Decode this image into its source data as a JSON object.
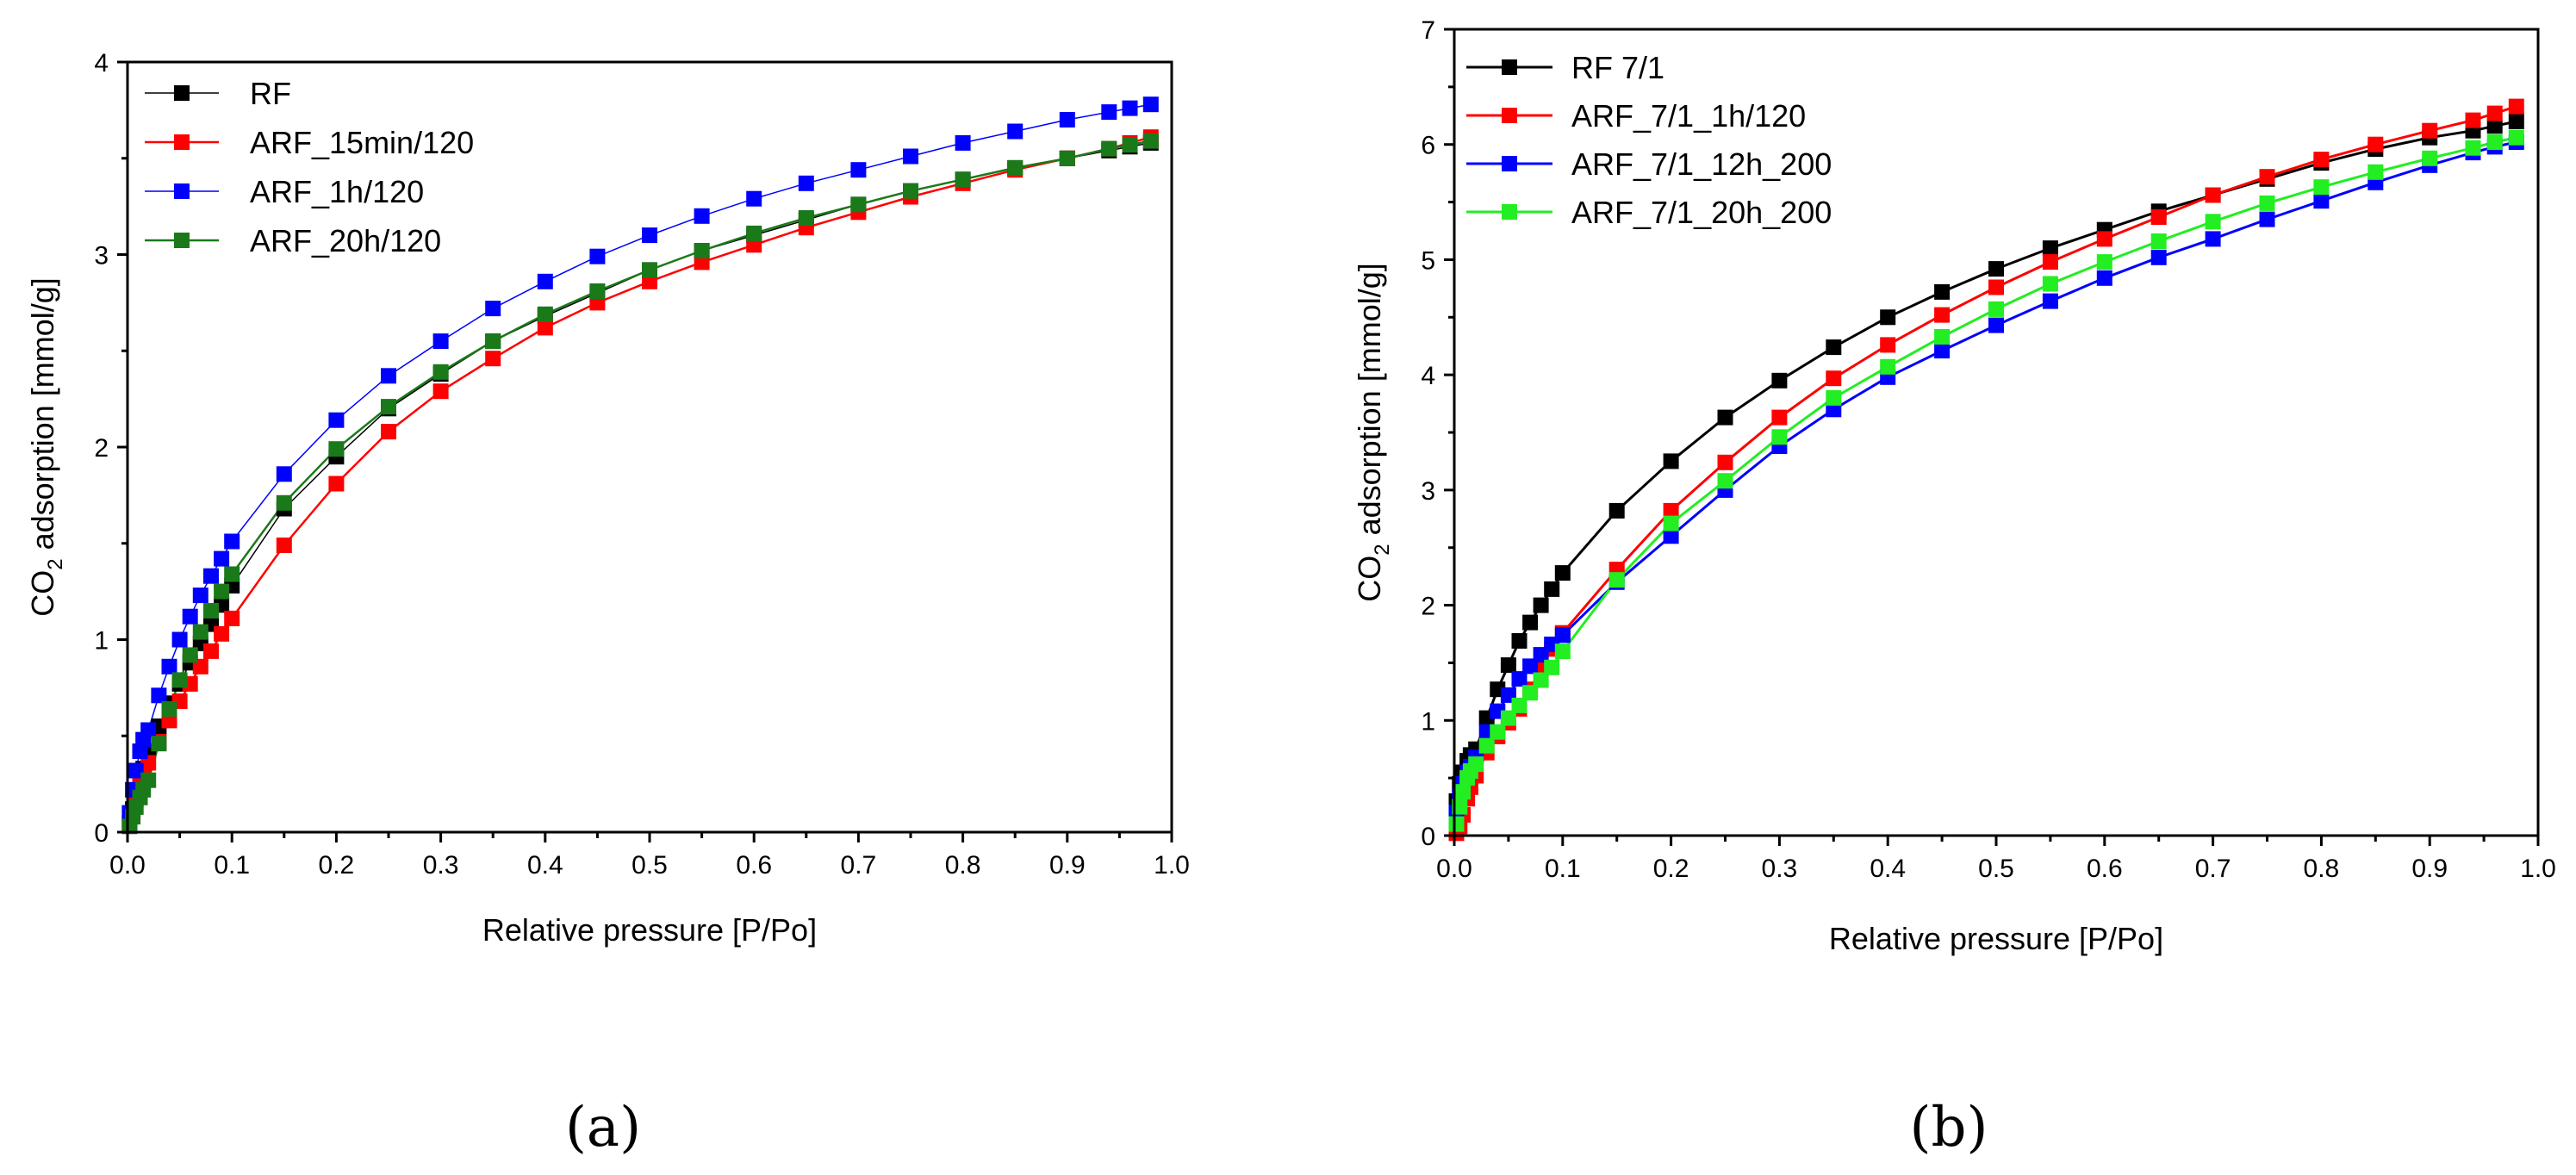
{
  "chart_data": [
    {
      "type": "line",
      "panel_label": "(a)",
      "xlabel": "Relative pressure [P/Po]",
      "ylabel_prefix": "CO",
      "ylabel_sub": "2",
      "ylabel_suffix": " adsorption [mmol/g]",
      "xlim": [
        0,
        1.0
      ],
      "ylim": [
        0,
        4
      ],
      "xticks": [
        "0.0",
        "0.1",
        "0.2",
        "0.3",
        "0.4",
        "0.5",
        "0.6",
        "0.7",
        "0.8",
        "0.9",
        "1.0"
      ],
      "yticks": [
        "0",
        "1",
        "2",
        "3",
        "4"
      ],
      "legend_position": "top-left",
      "series": [
        {
          "name": "RF",
          "color": "#000000",
          "line_width": 1.5,
          "x": [
            0.002,
            0.005,
            0.008,
            0.012,
            0.015,
            0.02,
            0.03,
            0.04,
            0.05,
            0.06,
            0.07,
            0.08,
            0.09,
            0.1,
            0.15,
            0.2,
            0.25,
            0.3,
            0.35,
            0.4,
            0.45,
            0.5,
            0.55,
            0.6,
            0.65,
            0.7,
            0.75,
            0.8,
            0.85,
            0.9,
            0.94,
            0.96,
            0.98
          ],
          "y": [
            0.05,
            0.12,
            0.2,
            0.28,
            0.33,
            0.42,
            0.55,
            0.67,
            0.77,
            0.88,
            0.98,
            1.08,
            1.18,
            1.28,
            1.68,
            1.95,
            2.2,
            2.38,
            2.55,
            2.68,
            2.8,
            2.92,
            3.02,
            3.1,
            3.18,
            3.26,
            3.33,
            3.39,
            3.45,
            3.5,
            3.54,
            3.56,
            3.58
          ]
        },
        {
          "name": "ARF_15min/120",
          "color": "#ff0000",
          "line_width": 2.5,
          "x": [
            0.002,
            0.005,
            0.008,
            0.012,
            0.015,
            0.02,
            0.03,
            0.04,
            0.05,
            0.06,
            0.07,
            0.08,
            0.09,
            0.1,
            0.15,
            0.2,
            0.25,
            0.3,
            0.35,
            0.4,
            0.45,
            0.5,
            0.55,
            0.6,
            0.65,
            0.7,
            0.75,
            0.8,
            0.85,
            0.9,
            0.94,
            0.96,
            0.98
          ],
          "y": [
            0.04,
            0.1,
            0.17,
            0.25,
            0.3,
            0.36,
            0.47,
            0.58,
            0.68,
            0.77,
            0.86,
            0.94,
            1.03,
            1.11,
            1.49,
            1.81,
            2.08,
            2.29,
            2.46,
            2.62,
            2.75,
            2.86,
            2.96,
            3.05,
            3.14,
            3.22,
            3.3,
            3.37,
            3.44,
            3.5,
            3.55,
            3.58,
            3.61
          ]
        },
        {
          "name": "ARF_1h/120",
          "color": "#0000ff",
          "line_width": 1.5,
          "x": [
            0.002,
            0.005,
            0.008,
            0.012,
            0.015,
            0.02,
            0.03,
            0.04,
            0.05,
            0.06,
            0.07,
            0.08,
            0.09,
            0.1,
            0.15,
            0.2,
            0.25,
            0.3,
            0.35,
            0.4,
            0.45,
            0.5,
            0.55,
            0.6,
            0.65,
            0.7,
            0.75,
            0.8,
            0.85,
            0.9,
            0.94,
            0.96,
            0.98
          ],
          "y": [
            0.1,
            0.22,
            0.32,
            0.42,
            0.48,
            0.53,
            0.71,
            0.86,
            1.0,
            1.12,
            1.23,
            1.33,
            1.42,
            1.51,
            1.86,
            2.14,
            2.37,
            2.55,
            2.72,
            2.86,
            2.99,
            3.1,
            3.2,
            3.29,
            3.37,
            3.44,
            3.51,
            3.58,
            3.64,
            3.7,
            3.74,
            3.76,
            3.78
          ]
        },
        {
          "name": "ARF_20h/120",
          "color": "#1a7a1a",
          "line_width": 2.5,
          "x": [
            0.002,
            0.005,
            0.008,
            0.012,
            0.015,
            0.02,
            0.03,
            0.04,
            0.05,
            0.06,
            0.07,
            0.08,
            0.09,
            0.1,
            0.15,
            0.2,
            0.25,
            0.3,
            0.35,
            0.4,
            0.45,
            0.5,
            0.55,
            0.6,
            0.65,
            0.7,
            0.75,
            0.8,
            0.85,
            0.9,
            0.94,
            0.96,
            0.98
          ],
          "y": [
            0.03,
            0.08,
            0.13,
            0.18,
            0.22,
            0.27,
            0.46,
            0.64,
            0.79,
            0.92,
            1.04,
            1.15,
            1.25,
            1.34,
            1.71,
            1.99,
            2.21,
            2.39,
            2.55,
            2.69,
            2.81,
            2.92,
            3.02,
            3.11,
            3.19,
            3.26,
            3.33,
            3.39,
            3.45,
            3.5,
            3.55,
            3.57,
            3.59
          ]
        }
      ]
    },
    {
      "type": "line",
      "panel_label": "(b)",
      "xlabel": "Relative pressure [P/Po]",
      "ylabel_prefix": "CO",
      "ylabel_sub": "2",
      "ylabel_suffix": " adsorption [mmol/g]",
      "xlim": [
        0,
        1.0
      ],
      "ylim": [
        0,
        7
      ],
      "xticks": [
        "0.0",
        "0.1",
        "0.2",
        "0.3",
        "0.4",
        "0.5",
        "0.6",
        "0.7",
        "0.8",
        "0.9",
        "1.0"
      ],
      "yticks": [
        "0",
        "1",
        "2",
        "3",
        "4",
        "5",
        "6",
        "7"
      ],
      "legend_position": "top-left",
      "series": [
        {
          "name": "RF 7/1",
          "color": "#000000",
          "line_width": 3,
          "x": [
            0.002,
            0.005,
            0.008,
            0.012,
            0.015,
            0.02,
            0.03,
            0.04,
            0.05,
            0.06,
            0.07,
            0.08,
            0.09,
            0.1,
            0.15,
            0.2,
            0.25,
            0.3,
            0.35,
            0.4,
            0.45,
            0.5,
            0.55,
            0.6,
            0.65,
            0.7,
            0.75,
            0.8,
            0.85,
            0.9,
            0.94,
            0.96,
            0.98
          ],
          "y": [
            0.3,
            0.45,
            0.55,
            0.65,
            0.7,
            0.75,
            1.02,
            1.27,
            1.48,
            1.69,
            1.85,
            2.0,
            2.14,
            2.28,
            2.82,
            3.25,
            3.63,
            3.95,
            4.24,
            4.5,
            4.72,
            4.92,
            5.1,
            5.26,
            5.42,
            5.56,
            5.7,
            5.84,
            5.96,
            6.06,
            6.12,
            6.16,
            6.2
          ]
        },
        {
          "name": "ARF_7/1_1h/120",
          "color": "#ff0000",
          "line_width": 3,
          "x": [
            0.002,
            0.005,
            0.008,
            0.012,
            0.015,
            0.02,
            0.03,
            0.04,
            0.05,
            0.06,
            0.07,
            0.08,
            0.09,
            0.1,
            0.15,
            0.2,
            0.25,
            0.3,
            0.35,
            0.4,
            0.45,
            0.5,
            0.55,
            0.6,
            0.65,
            0.7,
            0.75,
            0.8,
            0.85,
            0.9,
            0.94,
            0.96,
            0.98
          ],
          "y": [
            0.02,
            0.08,
            0.18,
            0.32,
            0.42,
            0.52,
            0.72,
            0.86,
            0.98,
            1.1,
            1.27,
            1.45,
            1.62,
            1.76,
            2.31,
            2.82,
            3.24,
            3.63,
            3.97,
            4.26,
            4.52,
            4.76,
            4.98,
            5.18,
            5.37,
            5.56,
            5.72,
            5.87,
            6.0,
            6.12,
            6.21,
            6.27,
            6.33
          ]
        },
        {
          "name": "ARF_7/1_12h_200",
          "color": "#0000ff",
          "line_width": 3,
          "x": [
            0.002,
            0.005,
            0.008,
            0.012,
            0.015,
            0.02,
            0.03,
            0.04,
            0.05,
            0.06,
            0.07,
            0.08,
            0.09,
            0.1,
            0.15,
            0.2,
            0.25,
            0.3,
            0.35,
            0.4,
            0.45,
            0.5,
            0.55,
            0.6,
            0.65,
            0.7,
            0.75,
            0.8,
            0.85,
            0.9,
            0.94,
            0.96,
            0.98
          ],
          "y": [
            0.2,
            0.35,
            0.45,
            0.55,
            0.6,
            0.68,
            0.9,
            1.08,
            1.22,
            1.36,
            1.47,
            1.57,
            1.66,
            1.74,
            2.2,
            2.6,
            3.0,
            3.38,
            3.7,
            3.98,
            4.21,
            4.43,
            4.64,
            4.84,
            5.02,
            5.18,
            5.35,
            5.51,
            5.67,
            5.82,
            5.93,
            5.98,
            6.02
          ]
        },
        {
          "name": "ARF_7/1_20h_200",
          "color": "#22ee22",
          "line_width": 3,
          "x": [
            0.002,
            0.005,
            0.008,
            0.012,
            0.015,
            0.02,
            0.03,
            0.04,
            0.05,
            0.06,
            0.07,
            0.08,
            0.09,
            0.1,
            0.15,
            0.2,
            0.25,
            0.3,
            0.35,
            0.4,
            0.45,
            0.5,
            0.55,
            0.6,
            0.65,
            0.7,
            0.75,
            0.8,
            0.85,
            0.9,
            0.94,
            0.96,
            0.98
          ],
          "y": [
            0.1,
            0.25,
            0.38,
            0.5,
            0.56,
            0.62,
            0.78,
            0.9,
            1.02,
            1.13,
            1.24,
            1.35,
            1.46,
            1.6,
            2.22,
            2.71,
            3.08,
            3.46,
            3.8,
            4.07,
            4.33,
            4.57,
            4.79,
            4.98,
            5.16,
            5.33,
            5.49,
            5.63,
            5.76,
            5.88,
            5.97,
            6.02,
            6.06
          ]
        }
      ]
    }
  ]
}
